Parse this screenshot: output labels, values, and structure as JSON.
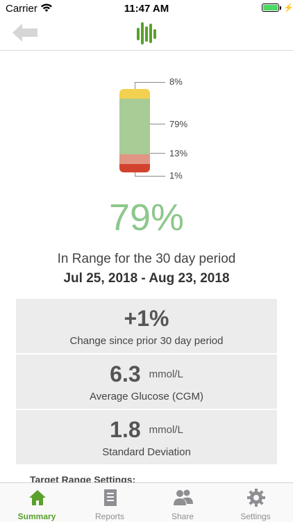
{
  "status_bar": {
    "carrier": "Carrier",
    "time": "11:47 AM"
  },
  "nav": {
    "back_icon": "back-arrow-icon",
    "logo_icon": "glucose-bars-logo",
    "accent_color": "#5aa02c"
  },
  "time_in_range": {
    "segments": [
      {
        "name": "high",
        "label": "8%",
        "color": "#f2d050"
      },
      {
        "name": "in-range",
        "label": "79%",
        "color": "#a7cc95"
      },
      {
        "name": "low",
        "label": "13%",
        "color": "#e09683"
      },
      {
        "name": "very-low",
        "label": "1%",
        "color": "#d2432f"
      }
    ],
    "headline_percent": "79%",
    "headline_color": "#8dc78c",
    "period_text": "In Range for the 30 day period",
    "date_range": "Jul 25, 2018 - Aug 23, 2018"
  },
  "stats": [
    {
      "value": "+1%",
      "unit": "",
      "label": "Change since prior 30 day period"
    },
    {
      "value": "6.3",
      "unit": "mmol/L",
      "label": "Average Glucose (CGM)"
    },
    {
      "value": "1.8",
      "unit": "mmol/L",
      "label": "Standard Deviation"
    }
  ],
  "target_heading": "Target Range Settings:",
  "tabs": [
    {
      "label": "Summary",
      "icon": "home-icon",
      "active": true
    },
    {
      "label": "Reports",
      "icon": "document-icon",
      "active": false
    },
    {
      "label": "Share",
      "icon": "people-icon",
      "active": false
    },
    {
      "label": "Settings",
      "icon": "gear-icon",
      "active": false
    }
  ]
}
